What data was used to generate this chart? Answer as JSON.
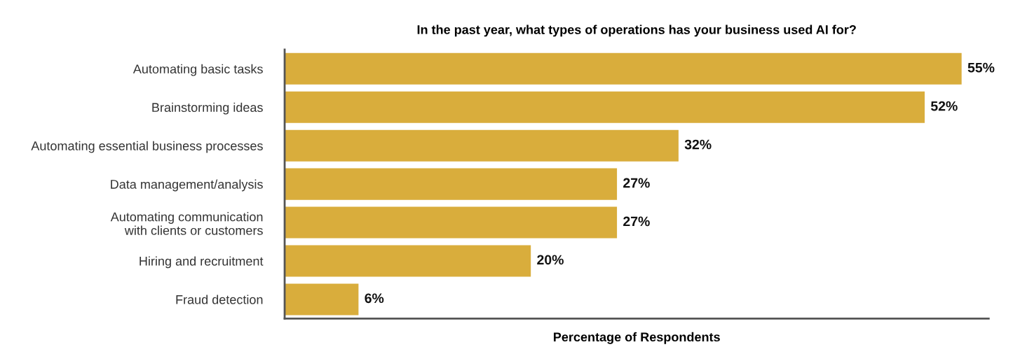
{
  "chart_data": {
    "type": "bar",
    "orientation": "horizontal",
    "title": "In the past year, what types of operations has your business used AI for?",
    "xlabel": "Percentage of Respondents",
    "categories": [
      "Automating basic tasks",
      "Brainstorming ideas",
      "Automating essential business processes",
      "Data management/analysis",
      "Automating communication\nwith clients or customers",
      "Hiring and recruitment",
      "Fraud detection"
    ],
    "values": [
      55,
      52,
      32,
      27,
      27,
      20,
      6
    ],
    "value_labels": [
      "55%",
      "52%",
      "32%",
      "27%",
      "27%",
      "20%",
      "6%"
    ],
    "color": "#d9ad3c",
    "tick_labels": "y",
    "grid": false,
    "legend": false
  }
}
